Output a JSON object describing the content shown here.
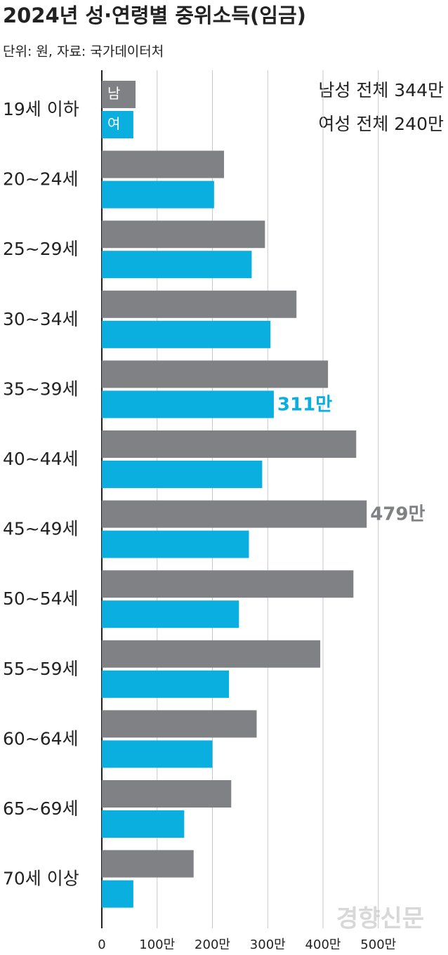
{
  "chart_data": {
    "type": "hbar",
    "title": "2024년 성·연령별 중위소득(임금)",
    "subtitle": "단위: 원, 자료: 국가데이터처",
    "annotations": [
      "남성 전체 344만",
      "여성 전체 240만"
    ],
    "source": "경향신문",
    "categories": [
      "19세 이하",
      "20~24세",
      "25~29세",
      "30~34세",
      "35~39세",
      "40~44세",
      "45~49세",
      "50~54세",
      "55~59세",
      "60~64세",
      "65~69세",
      "70세 이상"
    ],
    "series": [
      {
        "name": "남",
        "color": "#808184",
        "values": [
          61,
          221,
          295,
          352,
          409,
          460,
          479,
          455,
          395,
          280,
          234,
          166
        ],
        "value_labels": [
          null,
          null,
          null,
          null,
          null,
          null,
          "479만",
          null,
          null,
          null,
          null,
          null
        ]
      },
      {
        "name": "여",
        "color": "#0aafe0",
        "values": [
          57,
          203,
          271,
          305,
          311,
          290,
          266,
          248,
          230,
          200,
          149,
          57
        ],
        "value_labels": [
          null,
          null,
          null,
          null,
          "311만",
          null,
          null,
          null,
          null,
          null,
          null,
          null
        ]
      }
    ],
    "xlim": [
      0,
      626
    ],
    "xticks": [
      0,
      {
        "value": 100,
        "label": "100만"
      },
      {
        "value": 200,
        "label": "200만"
      },
      {
        "value": 300,
        "label": "300만"
      },
      {
        "value": 400,
        "label": "400만"
      },
      {
        "value": 500,
        "label": "500만"
      }
    ],
    "grid": true
  }
}
